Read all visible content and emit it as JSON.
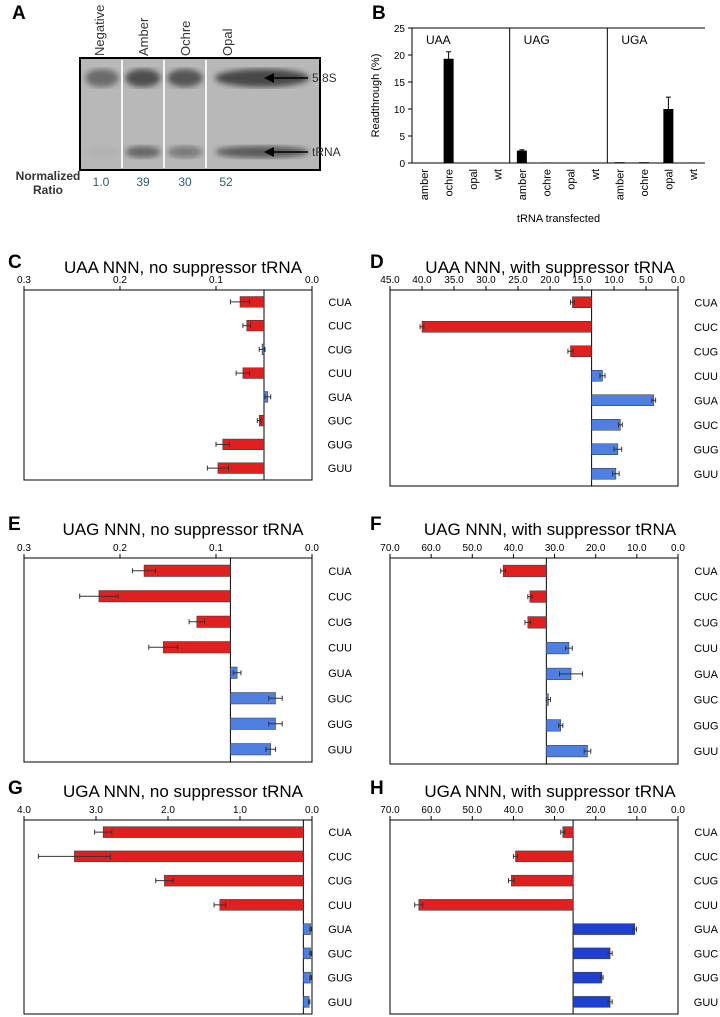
{
  "panel_labels": [
    "A",
    "B",
    "C",
    "D",
    "E",
    "F",
    "G",
    "H"
  ],
  "gel": {
    "lanes": [
      "Negative",
      "Amber",
      "Ochre",
      "Opal"
    ],
    "bands": [
      "5.8S",
      "tRNA"
    ],
    "ratio_label_line1": "Normalized",
    "ratio_label_line2": "Ratio",
    "ratios": [
      "1.0",
      "39",
      "30",
      "52"
    ],
    "tRNA_band_fraction": [
      0.05,
      0.6,
      0.45,
      0.7
    ]
  },
  "chart_data": [
    {
      "id": "B",
      "type": "bar",
      "ylabel": "Readthrough (%)",
      "xlabel": "tRNA transfected",
      "ylim": [
        0,
        25
      ],
      "yticks": [
        "0",
        "5",
        "10",
        "15",
        "20",
        "25"
      ],
      "groups": [
        {
          "name": "UAA",
          "categories": [
            "amber",
            "ochre",
            "opal",
            "wt"
          ],
          "values": [
            0.05,
            19.3,
            0.05,
            0.05
          ],
          "errors": [
            0,
            1.3,
            0,
            0
          ]
        },
        {
          "name": "UAG",
          "categories": [
            "amber",
            "ochre",
            "opal",
            "wt"
          ],
          "values": [
            2.3,
            0.1,
            0.05,
            0.05
          ],
          "errors": [
            0.15,
            0,
            0,
            0
          ]
        },
        {
          "name": "UGA",
          "categories": [
            "amber",
            "ochre",
            "opal",
            "wt"
          ],
          "values": [
            0.15,
            0.15,
            10.0,
            0.1
          ],
          "errors": [
            0,
            0,
            2.2,
            0
          ]
        }
      ]
    },
    {
      "id": "C",
      "type": "bar",
      "title": "UAA NNN, no suppressor tRNA",
      "orientation": "horizontal-reversed",
      "xlim": [
        0.3,
        0.0
      ],
      "xticks": [
        "0.3",
        "0.2",
        "0.1",
        "0.0"
      ],
      "tick_values": [
        0.3,
        0.2,
        0.1,
        0.0
      ],
      "baseline": 0.05,
      "categories": [
        "CUA",
        "CUC",
        "CUG",
        "CUU",
        "GUA",
        "GUC",
        "GUG",
        "GUU"
      ],
      "values": [
        0.075,
        0.068,
        0.052,
        0.072,
        0.046,
        0.055,
        0.093,
        0.098
      ],
      "errors": [
        0.01,
        0.004,
        0.003,
        0.007,
        0.003,
        0.002,
        0.007,
        0.011
      ],
      "colors": [
        "#e02020",
        "#e02020",
        "#4f7fe0",
        "#e02020",
        "#4f7fe0",
        "#e02020",
        "#e02020",
        "#e02020"
      ]
    },
    {
      "id": "D",
      "type": "bar",
      "title": "UAA NNN, with suppressor tRNA",
      "orientation": "horizontal-reversed",
      "xlim": [
        45.0,
        0.0
      ],
      "xticks": [
        "45.0",
        "40.0",
        "35.0",
        "30.0",
        "25.0",
        "20.0",
        "15.0",
        "10.0",
        "5.0",
        "0.0"
      ],
      "tick_values": [
        45,
        40,
        35,
        30,
        25,
        20,
        15,
        10,
        5,
        0
      ],
      "baseline": 13.5,
      "categories": [
        "CUA",
        "CUC",
        "CUG",
        "CUU",
        "GUA",
        "GUC",
        "GUG",
        "GUU"
      ],
      "values": [
        16.5,
        40.0,
        16.8,
        11.8,
        3.8,
        9.0,
        9.4,
        9.7
      ],
      "errors": [
        0.3,
        0.3,
        0.4,
        0.4,
        0.3,
        0.3,
        0.6,
        0.5
      ],
      "colors": [
        "#e02020",
        "#e02020",
        "#e02020",
        "#4f7fe0",
        "#4f7fe0",
        "#4f7fe0",
        "#4f7fe0",
        "#4f7fe0"
      ]
    },
    {
      "id": "E",
      "type": "bar",
      "title": "UAG NNN, no suppressor tRNA",
      "orientation": "horizontal-reversed",
      "xlim": [
        0.3,
        0.0
      ],
      "xticks": [
        "0.3",
        "0.2",
        "0.1",
        "0.0"
      ],
      "tick_values": [
        0.3,
        0.2,
        0.1,
        0.0
      ],
      "baseline": 0.085,
      "categories": [
        "CUA",
        "CUC",
        "CUG",
        "CUU",
        "GUA",
        "GUC",
        "GUG",
        "GUU"
      ],
      "values": [
        0.175,
        0.222,
        0.12,
        0.155,
        0.078,
        0.038,
        0.038,
        0.043
      ],
      "errors": [
        0.012,
        0.02,
        0.008,
        0.015,
        0.004,
        0.007,
        0.007,
        0.005
      ],
      "colors": [
        "#e02020",
        "#e02020",
        "#e02020",
        "#e02020",
        "#4f7fe0",
        "#4f7fe0",
        "#4f7fe0",
        "#4f7fe0"
      ]
    },
    {
      "id": "F",
      "type": "bar",
      "title": "UAG NNN, with suppressor tRNA",
      "orientation": "horizontal-reversed",
      "xlim": [
        70.0,
        0.0
      ],
      "xticks": [
        "70.0",
        "60.0",
        "50.0",
        "40.0",
        "30.0",
        "20.0",
        "10.0",
        "0.0"
      ],
      "tick_values": [
        70,
        60,
        50,
        40,
        30,
        20,
        10,
        0
      ],
      "baseline": 32.0,
      "categories": [
        "CUA",
        "CUC",
        "CUG",
        "CUU",
        "GUA",
        "GUC",
        "GUG",
        "GUU"
      ],
      "values": [
        42.5,
        36.0,
        36.5,
        26.5,
        26.0,
        31.5,
        28.5,
        22.0
      ],
      "errors": [
        0.6,
        0.5,
        0.7,
        0.8,
        2.8,
        0.5,
        0.5,
        0.8
      ],
      "colors": [
        "#e02020",
        "#e02020",
        "#e02020",
        "#4f7fe0",
        "#4f7fe0",
        "#4f7fe0",
        "#4f7fe0",
        "#4f7fe0"
      ]
    },
    {
      "id": "G",
      "type": "bar",
      "title": "UGA NNN, no suppressor tRNA",
      "orientation": "horizontal-reversed",
      "xlim": [
        4.0,
        0.0
      ],
      "xticks": [
        "4.0",
        "3.0",
        "2.0",
        "1.0",
        "0.0"
      ],
      "tick_values": [
        4,
        3,
        2,
        1,
        0
      ],
      "baseline": 0.12,
      "categories": [
        "CUA",
        "CUC",
        "CUG",
        "CUU",
        "GUA",
        "GUC",
        "GUG",
        "GUU"
      ],
      "values": [
        2.9,
        3.3,
        2.05,
        1.28,
        0.02,
        0.02,
        0.02,
        0.04
      ],
      "errors": [
        0.12,
        0.5,
        0.12,
        0.08,
        0.01,
        0.01,
        0.01,
        0.01
      ],
      "colors": [
        "#e02020",
        "#e02020",
        "#e02020",
        "#e02020",
        "#4f7fe0",
        "#4f7fe0",
        "#4f7fe0",
        "#4f7fe0"
      ]
    },
    {
      "id": "H",
      "type": "bar",
      "title": "UGA NNN, with suppressor tRNA",
      "orientation": "horizontal-reversed",
      "xlim": [
        70.0,
        0.0
      ],
      "xticks": [
        "70.0",
        "60.0",
        "50.0",
        "40.0",
        "30.0",
        "20.0",
        "10.0",
        "0.0"
      ],
      "tick_values": [
        70,
        60,
        50,
        40,
        30,
        20,
        10,
        0
      ],
      "baseline": 25.5,
      "categories": [
        "CUA",
        "CUC",
        "CUG",
        "CUU",
        "GUA",
        "GUC",
        "GUG",
        "GUU"
      ],
      "values": [
        28.0,
        39.5,
        40.5,
        63.0,
        10.5,
        16.5,
        18.5,
        16.5
      ],
      "errors": [
        0.5,
        0.5,
        0.7,
        1.0,
        0.4,
        0.5,
        0.3,
        0.5
      ],
      "colors": [
        "#e02020",
        "#e02020",
        "#e02020",
        "#e02020",
        "#1f3fd0",
        "#1f3fd0",
        "#1f3fd0",
        "#1f3fd0"
      ]
    }
  ]
}
